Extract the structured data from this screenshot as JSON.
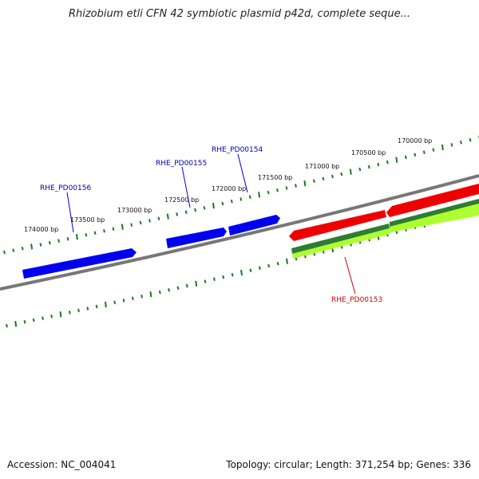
{
  "title": "Rhizobium etli CFN 42 symbiotic plasmid p42d, complete seque...",
  "footer": {
    "accession": "Accession: NC_004041",
    "summary": "Topology: circular; Length: 371,254 bp; Genes: 336"
  },
  "scale_labels": [
    "174000 bp",
    "173500 bp",
    "173000 bp",
    "172500 bp",
    "172000 bp",
    "171500 bp",
    "171000 bp",
    "170500 bp",
    "170000 bp"
  ],
  "gene_labels": {
    "g156": "RHE_PD00156",
    "g155": "RHE_PD00155",
    "g154": "RHE_PD00154",
    "g153": "RHE_PD00153"
  },
  "colors": {
    "forward_gene": "#0000ee",
    "reverse_gene": "#ee0000",
    "cds_dark": "#2e7d32",
    "cds_light": "#adff2f",
    "backbone": "#777777",
    "tick": "#1b7a1b",
    "forward_label": "#0000aa",
    "reverse_label": "#cc0000"
  }
}
